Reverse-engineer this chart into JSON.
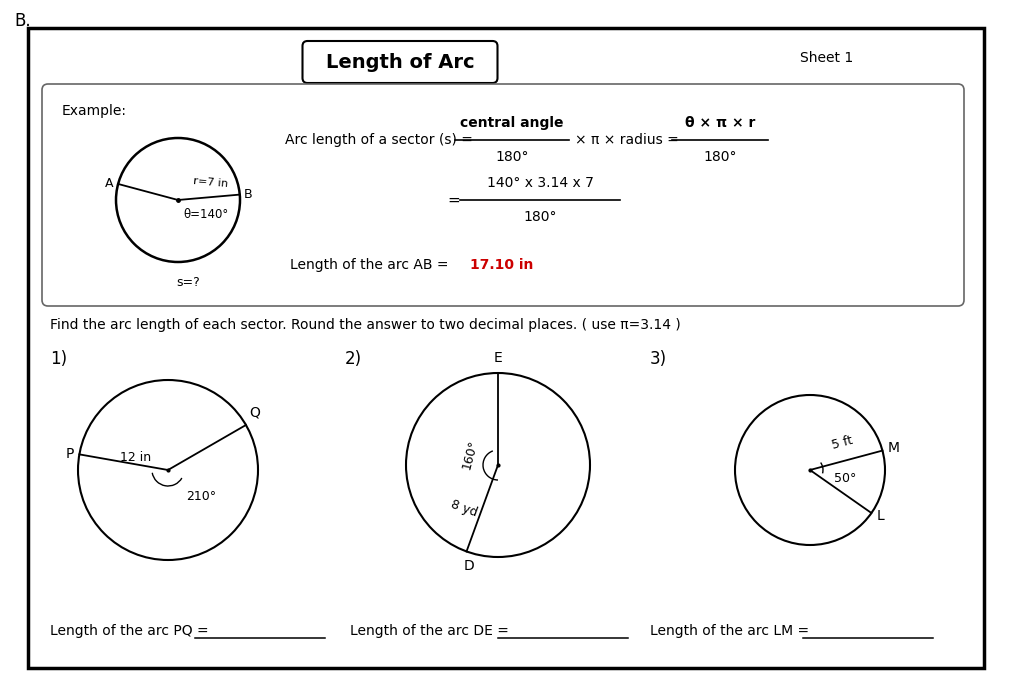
{
  "title": "Length of Arc",
  "sheet": "Sheet 1",
  "bg_color": "#ffffff",
  "title_fontsize": 14,
  "sheet_fontsize": 10,
  "formula_line1_a": "Arc length of a sector (s) =",
  "formula_frac_num": "central angle",
  "formula_frac_den": "180°",
  "formula_mid": "× π × radius =",
  "formula_rhs_num": "θ × π × r",
  "formula_rhs_den": "180°",
  "formula2_num": "140° x 3.14 x 7",
  "formula2_den": "180°",
  "result_prefix": "Length of the arc AB = ",
  "result_value": "17.10 in",
  "result_color": "#cc0000",
  "instruction": "Find the arc length of each sector. Round the answer to two decimal places. ( use π=3.14 )",
  "example_label": "Example:",
  "example_A": "A",
  "example_B": "B",
  "example_r": "r=7 in",
  "example_theta": "θ=140°",
  "example_s": "s=?",
  "c1_label": "1)",
  "c1_radius_lbl": "12 in",
  "c1_angle_lbl": "210°",
  "c1_P": "P",
  "c1_Q": "Q",
  "c2_label": "2)",
  "c2_angle_lbl": "160°",
  "c2_radius_lbl": "8 yd",
  "c2_E": "E",
  "c2_D": "D",
  "c3_label": "3)",
  "c3_radius_lbl": "5 ft",
  "c3_angle_lbl": "50°",
  "c3_M": "M",
  "c3_L": "L",
  "ans1": "Length of the arc PQ = ",
  "ans2": "Length of the arc DE = ",
  "ans3": "Length of the arc LM = "
}
